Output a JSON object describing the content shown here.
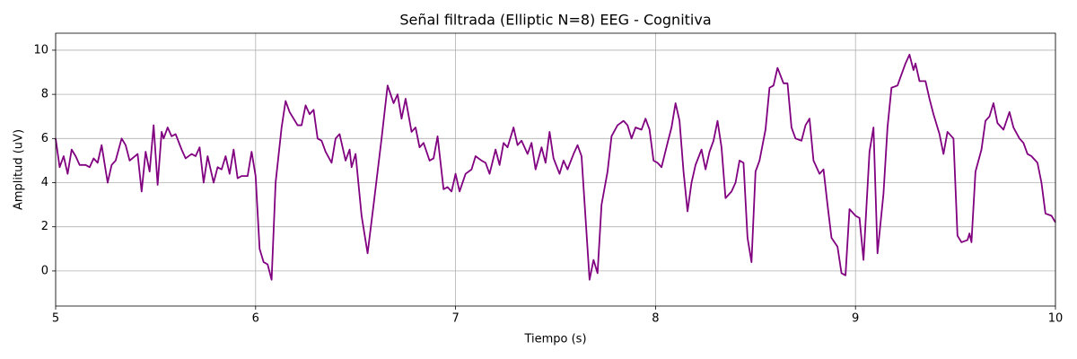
{
  "chart_data": {
    "type": "line",
    "title": "Señal filtrada (Elliptic N=8) EEG - Cognitiva",
    "xlabel": "Tiempo (s)",
    "ylabel": "Amplitud (uV)",
    "color": "#800080",
    "grid": true,
    "xlim": [
      5,
      10
    ],
    "xticks": [
      5,
      6,
      7,
      8,
      9,
      10
    ],
    "ylim": [
      -1.59,
      10.77
    ],
    "yticks": [
      0,
      2,
      4,
      6,
      8,
      10
    ],
    "x": [
      5.0,
      5.02,
      5.04,
      5.06,
      5.08,
      5.1,
      5.12,
      5.15,
      5.17,
      5.19,
      5.21,
      5.23,
      5.26,
      5.28,
      5.3,
      5.33,
      5.35,
      5.37,
      5.41,
      5.43,
      5.45,
      5.47,
      5.49,
      5.51,
      5.53,
      5.54,
      5.56,
      5.58,
      5.6,
      5.63,
      5.65,
      5.68,
      5.7,
      5.72,
      5.74,
      5.76,
      5.79,
      5.81,
      5.83,
      5.85,
      5.87,
      5.89,
      5.91,
      5.93,
      5.96,
      5.98,
      6.0,
      6.02,
      6.04,
      6.06,
      6.08,
      6.1,
      6.13,
      6.15,
      6.17,
      6.21,
      6.23,
      6.25,
      6.27,
      6.29,
      6.31,
      6.33,
      6.35,
      6.38,
      6.4,
      6.42,
      6.45,
      6.47,
      6.48,
      6.5,
      6.53,
      6.56,
      6.59,
      6.63,
      6.66,
      6.69,
      6.71,
      6.73,
      6.75,
      6.78,
      6.8,
      6.82,
      6.84,
      6.87,
      6.89,
      6.91,
      6.94,
      6.96,
      6.98,
      7.0,
      7.02,
      7.05,
      7.08,
      7.1,
      7.13,
      7.15,
      7.17,
      7.2,
      7.22,
      7.24,
      7.26,
      7.29,
      7.31,
      7.33,
      7.36,
      7.38,
      7.4,
      7.43,
      7.45,
      7.47,
      7.49,
      7.52,
      7.54,
      7.56,
      7.59,
      7.61,
      7.63,
      7.66,
      7.67,
      7.69,
      7.71,
      7.73,
      7.76,
      7.78,
      7.81,
      7.84,
      7.86,
      7.88,
      7.9,
      7.93,
      7.95,
      7.97,
      7.99,
      8.01,
      8.03,
      8.06,
      8.08,
      8.1,
      8.12,
      8.14,
      8.16,
      8.18,
      8.2,
      8.23,
      8.25,
      8.27,
      8.29,
      8.31,
      8.33,
      8.35,
      8.38,
      8.4,
      8.42,
      8.44,
      8.46,
      8.48,
      8.5,
      8.52,
      8.55,
      8.57,
      8.59,
      8.61,
      8.64,
      8.66,
      8.68,
      8.7,
      8.73,
      8.75,
      8.77,
      8.79,
      8.82,
      8.84,
      8.86,
      8.88,
      8.91,
      8.93,
      8.95,
      8.97,
      9.0,
      9.02,
      9.04,
      9.07,
      9.09,
      9.11,
      9.14,
      9.16,
      9.18,
      9.21,
      9.23,
      9.25,
      9.27,
      9.29,
      9.3,
      9.32,
      9.35,
      9.37,
      9.39,
      9.42,
      9.44,
      9.46,
      9.49,
      9.51,
      9.53,
      9.56,
      9.57,
      9.58,
      9.6,
      9.63,
      9.65,
      9.67,
      9.69,
      9.71,
      9.74,
      9.77,
      9.79,
      9.82,
      9.84,
      9.86,
      9.88,
      9.91,
      9.93,
      9.95,
      9.98,
      10.0
    ],
    "values": [
      6.0,
      4.7,
      5.2,
      4.4,
      5.5,
      5.2,
      4.8,
      4.8,
      4.7,
      5.1,
      4.9,
      5.7,
      4.0,
      4.8,
      5.0,
      6.0,
      5.7,
      5.0,
      5.3,
      3.6,
      5.4,
      4.5,
      6.6,
      3.9,
      6.3,
      6.0,
      6.5,
      6.1,
      6.2,
      5.5,
      5.1,
      5.3,
      5.2,
      5.6,
      4.0,
      5.2,
      4.0,
      4.7,
      4.6,
      5.2,
      4.4,
      5.5,
      4.2,
      4.3,
      4.3,
      5.4,
      4.3,
      1.0,
      0.4,
      0.3,
      -0.4,
      4.0,
      6.5,
      7.7,
      7.2,
      6.6,
      6.6,
      7.5,
      7.1,
      7.3,
      6.0,
      5.9,
      5.4,
      4.9,
      6.0,
      6.2,
      5.0,
      5.5,
      4.7,
      5.3,
      2.5,
      0.8,
      3.0,
      6.0,
      8.4,
      7.6,
      8.0,
      6.9,
      7.8,
      6.3,
      6.5,
      5.6,
      5.8,
      5.0,
      5.1,
      6.1,
      3.7,
      3.8,
      3.6,
      4.4,
      3.6,
      4.4,
      4.6,
      5.2,
      5.0,
      4.9,
      4.4,
      5.5,
      4.8,
      5.8,
      5.6,
      6.5,
      5.7,
      5.9,
      5.3,
      5.8,
      4.6,
      5.6,
      4.9,
      6.3,
      5.1,
      4.4,
      5.0,
      4.6,
      5.3,
      5.7,
      5.2,
      1.0,
      -0.4,
      0.5,
      -0.1,
      3.0,
      4.5,
      6.1,
      6.6,
      6.8,
      6.6,
      6.0,
      6.5,
      6.4,
      6.9,
      6.4,
      5.0,
      4.9,
      4.7,
      5.8,
      6.5,
      7.6,
      6.8,
      4.5,
      2.7,
      4.0,
      4.8,
      5.5,
      4.6,
      5.4,
      5.9,
      6.8,
      5.6,
      3.3,
      3.6,
      4.0,
      5.0,
      4.9,
      1.5,
      0.4,
      4.5,
      5.0,
      6.4,
      8.3,
      8.4,
      9.2,
      8.5,
      8.5,
      6.5,
      6.0,
      5.9,
      6.6,
      6.9,
      5.0,
      4.4,
      4.6,
      3.0,
      1.5,
      1.1,
      -0.1,
      -0.2,
      2.8,
      2.5,
      2.4,
      0.5,
      5.4,
      6.5,
      0.8,
      3.5,
      6.5,
      8.3,
      8.4,
      8.9,
      9.4,
      9.8,
      9.1,
      9.4,
      8.6,
      8.6,
      7.8,
      7.1,
      6.2,
      5.3,
      6.3,
      6.0,
      1.6,
      1.3,
      1.4,
      1.7,
      1.3,
      4.5,
      5.5,
      6.8,
      7.0,
      7.6,
      6.7,
      6.4,
      7.2,
      6.5,
      6.0,
      5.8,
      5.3,
      5.2,
      4.9,
      4.0,
      2.6,
      2.5,
      2.2
    ]
  }
}
